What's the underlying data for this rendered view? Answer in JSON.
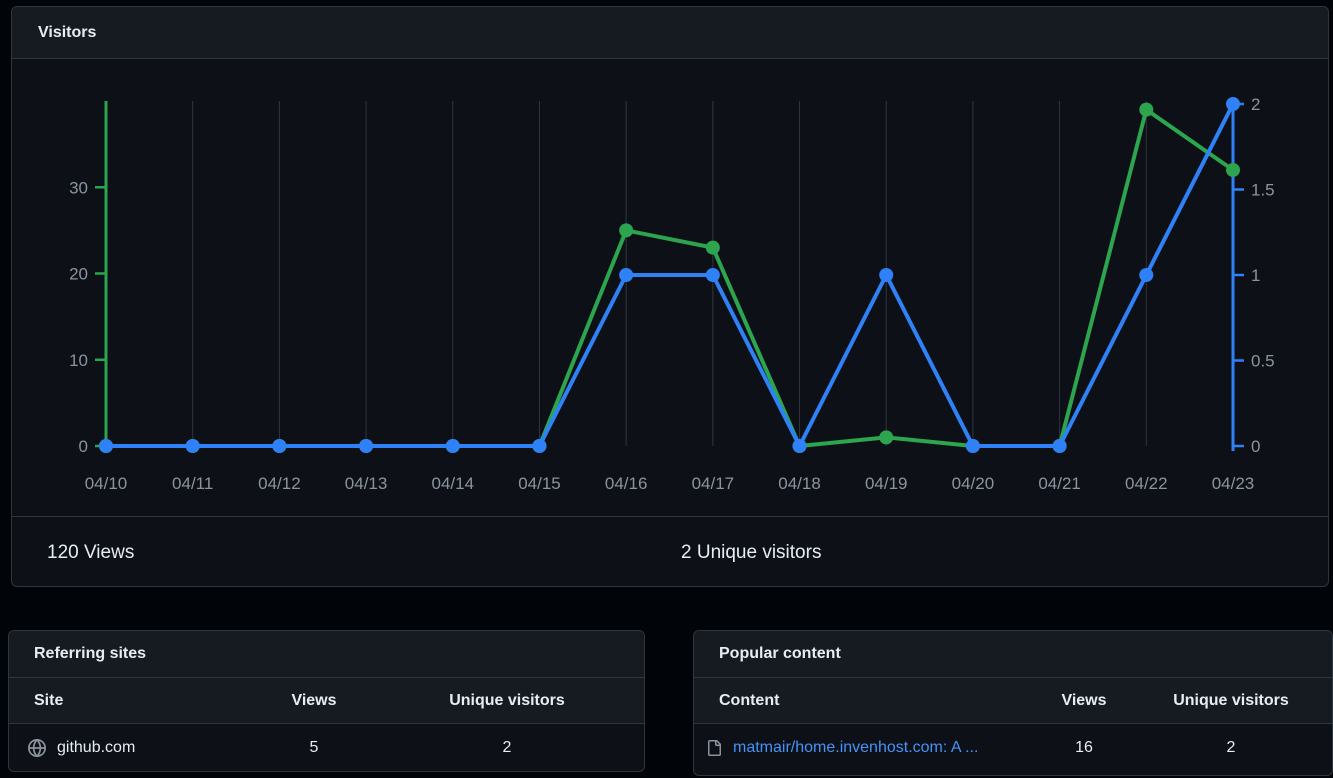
{
  "visitors_panel": {
    "title": "Visitors",
    "stats": {
      "views_total": "120 Views",
      "unique_total": "2 Unique visitors"
    }
  },
  "chart_data": {
    "type": "line",
    "title": "Visitors",
    "x": [
      "04/10",
      "04/11",
      "04/12",
      "04/13",
      "04/14",
      "04/15",
      "04/16",
      "04/17",
      "04/18",
      "04/19",
      "04/20",
      "04/21",
      "04/22",
      "04/23"
    ],
    "series": [
      {
        "name": "Views",
        "axis": "left",
        "color": "#2da44e",
        "values": [
          0,
          0,
          0,
          0,
          0,
          0,
          25,
          23,
          0,
          1,
          0,
          0,
          39,
          32
        ]
      },
      {
        "name": "Unique visitors",
        "axis": "right",
        "color": "#2f81f7",
        "values": [
          0,
          0,
          0,
          0,
          0,
          0,
          1,
          1,
          0,
          1,
          0,
          0,
          1,
          2
        ]
      }
    ],
    "left_axis": {
      "ticks": [
        0,
        10,
        20,
        30
      ],
      "max": 40,
      "color": "#2da44e"
    },
    "right_axis": {
      "ticks": [
        0,
        0.5,
        1,
        1.5,
        2
      ],
      "max": 2,
      "color": "#2f81f7"
    },
    "grid": "vertical-only",
    "legend": "none"
  },
  "referring_sites": {
    "title": "Referring sites",
    "columns": [
      "Site",
      "Views",
      "Unique visitors"
    ],
    "rows": [
      {
        "icon": "globe-icon",
        "site": "github.com",
        "views": "5",
        "unique_visitors": "2"
      }
    ]
  },
  "popular_content": {
    "title": "Popular content",
    "columns": [
      "Content",
      "Views",
      "Unique visitors"
    ],
    "rows": [
      {
        "icon": "file-icon",
        "content": "matmair/home.invenhost.com: A ...",
        "views": "16",
        "unique_visitors": "2"
      }
    ]
  },
  "colors": {
    "page_bg": "#010409",
    "panel_bg": "#0d1117",
    "header_bg": "#161b22",
    "border": "#30363d",
    "text_primary": "#e6edf3",
    "text_secondary": "#8b949e",
    "views_green": "#2da44e",
    "unique_blue": "#2f81f7",
    "link_blue": "#4493f8"
  }
}
